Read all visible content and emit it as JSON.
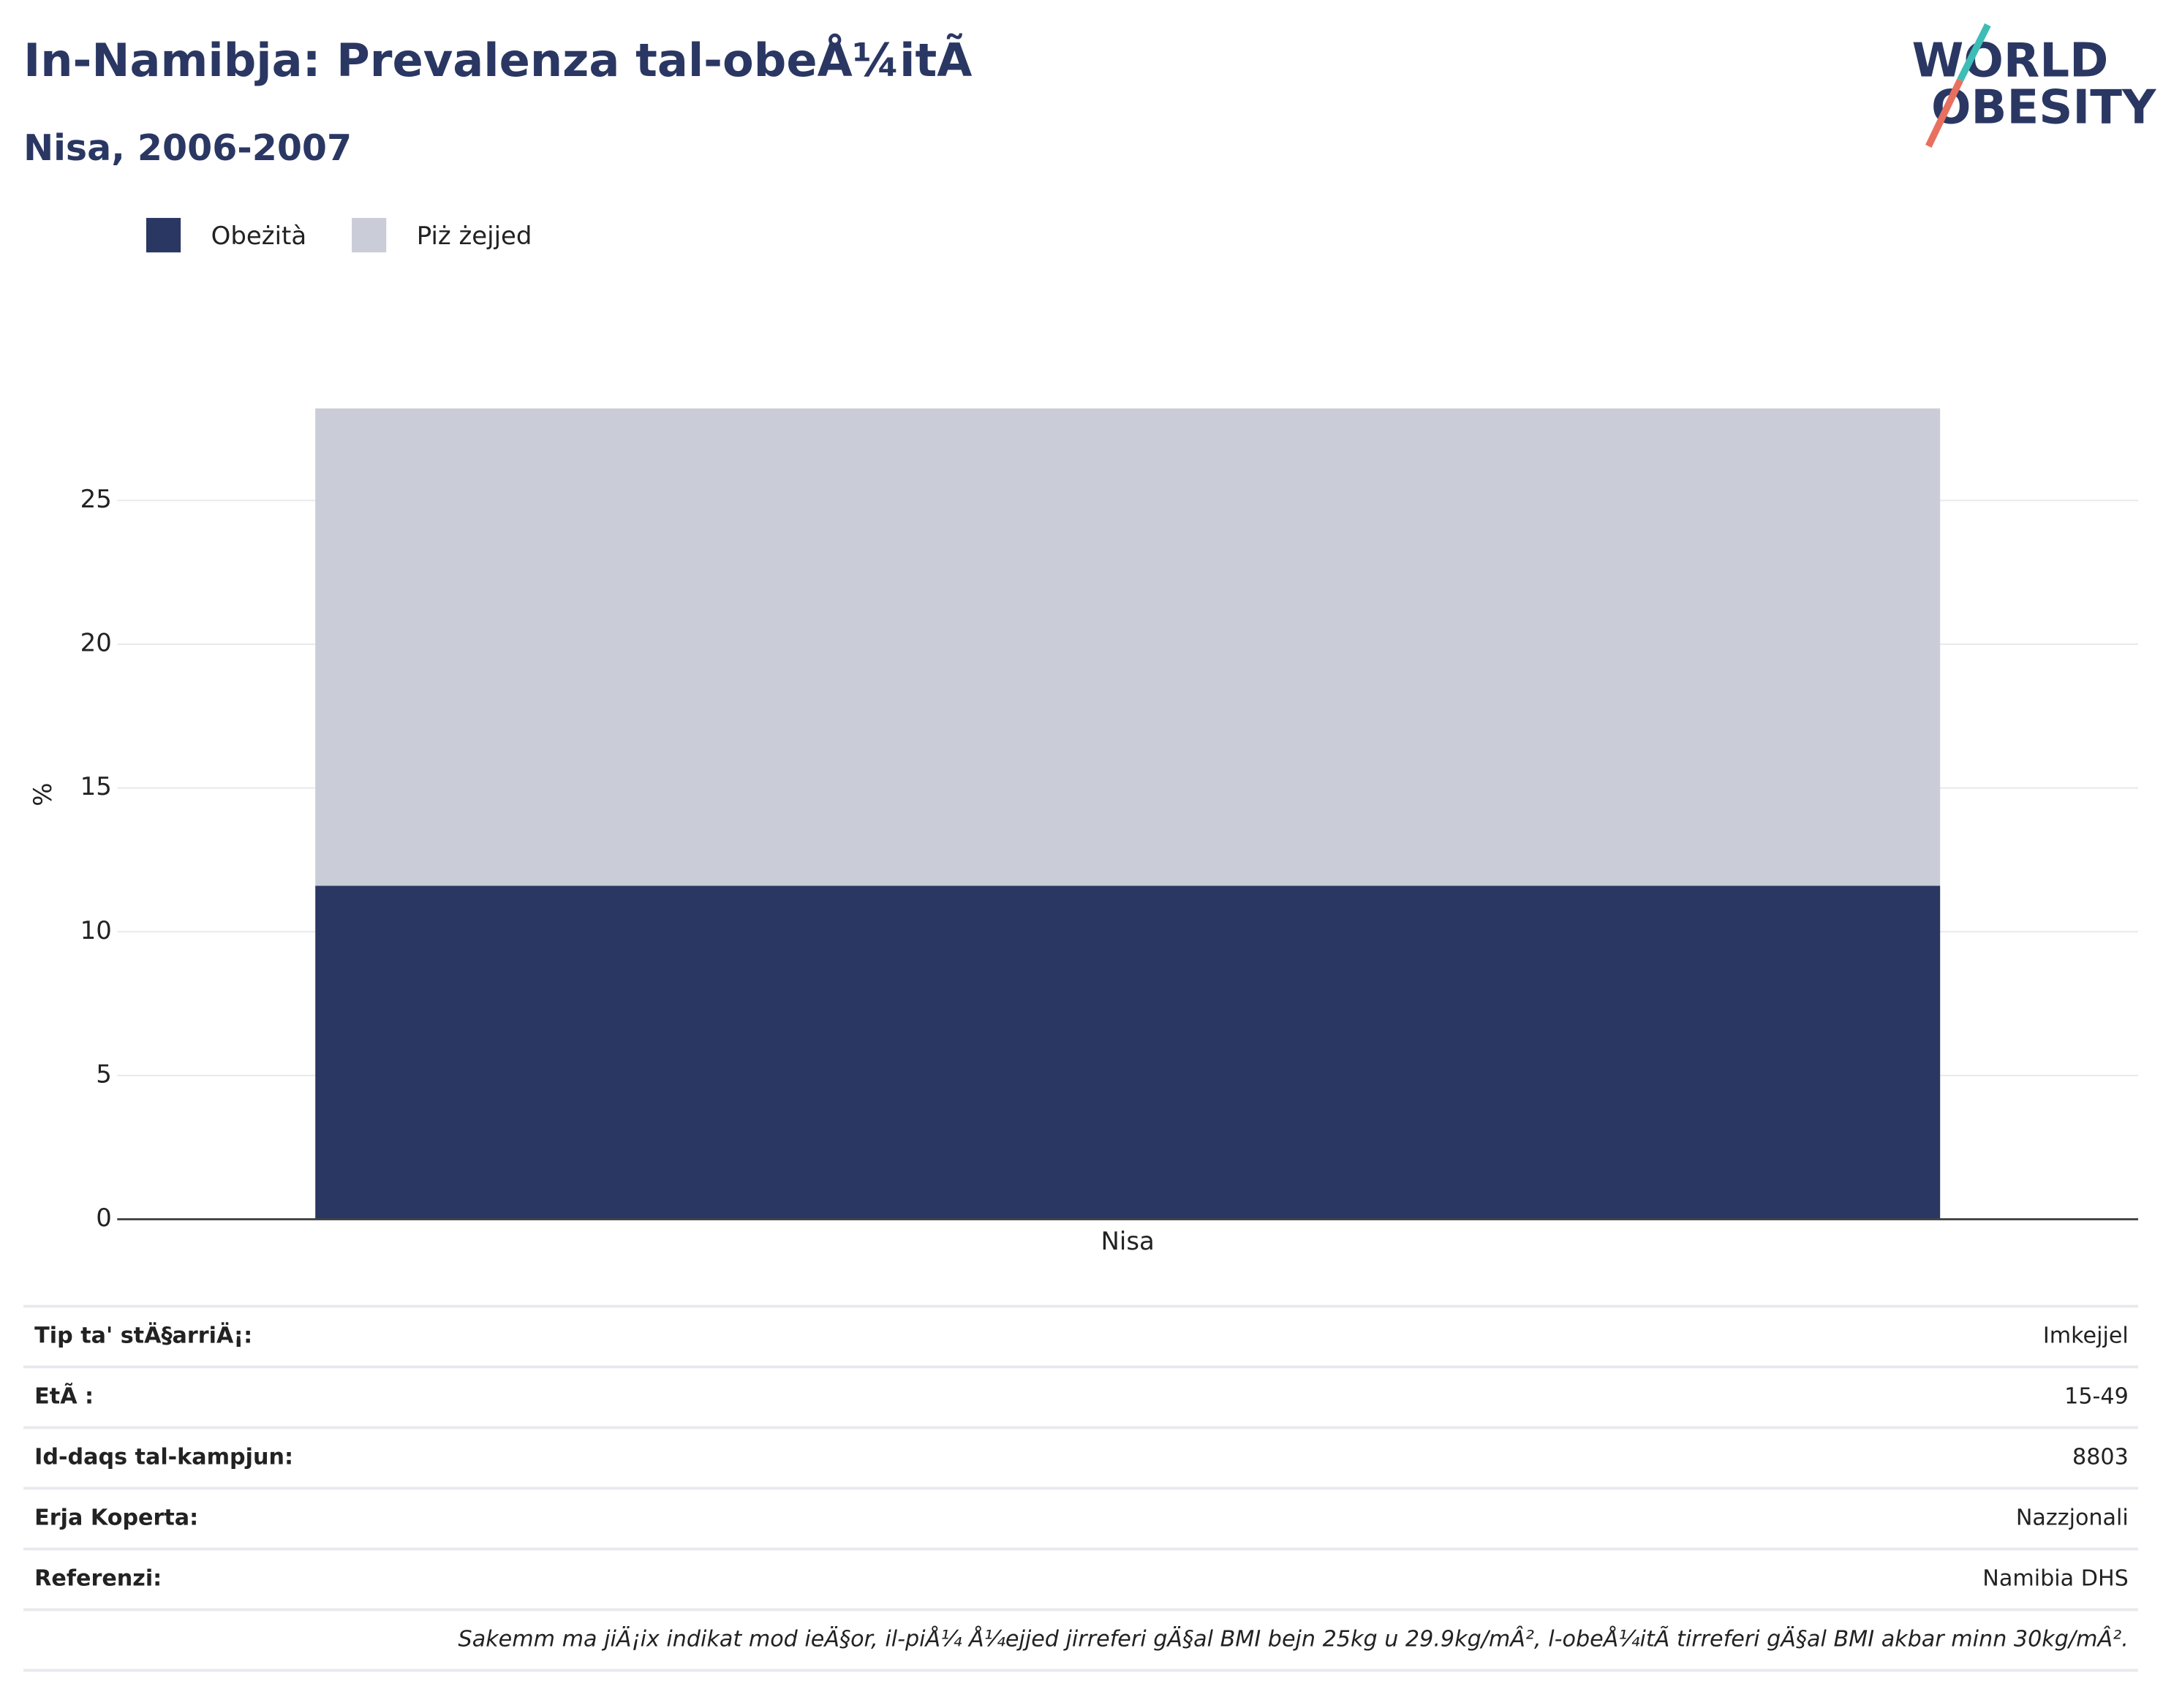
{
  "chart_data": {
    "type": "bar",
    "title": "In-Namibja: Prevalenza tal-obeÅ¼itÃ",
    "subtitle": "Nisa, 2006-2007",
    "ylabel": "%",
    "categories": [
      "Nisa"
    ],
    "series": [
      {
        "name": "Obeżità",
        "color": "#2a3763",
        "values": [
          11.6
        ]
      },
      {
        "name": "Piż żejjed",
        "color": "#cacdd8",
        "values": [
          16.6
        ]
      }
    ],
    "stacked": true,
    "ylim": [
      0,
      29.5
    ],
    "yticks": [
      0,
      5,
      10,
      15,
      20,
      25
    ],
    "grid": true,
    "legend": "top-left"
  },
  "logo": {
    "line1": "WORLD",
    "line2": "OBESITY"
  },
  "table": {
    "rows": [
      [
        "Tip ta' stÄ§arriÄ¡:",
        "Imkejjel"
      ],
      [
        "EtÃ :",
        "15-49"
      ],
      [
        "Id-daqs tal-kampjun:",
        "8803"
      ],
      [
        "Erja Koperta:",
        "Nazzjonali"
      ],
      [
        "Referenzi:",
        "Namibia DHS"
      ]
    ]
  },
  "footnote": "Sakemm ma jiÄ¡ix indikat mod ieÄ§or, il-piÅ¼ Å¼ejjed jirreferi gÄ§al BMI bejn 25kg u 29.9kg/mÂ², l-obeÅ¼itÃ  tirreferi gÄ§al BMI akbar minn 30kg/mÂ²."
}
